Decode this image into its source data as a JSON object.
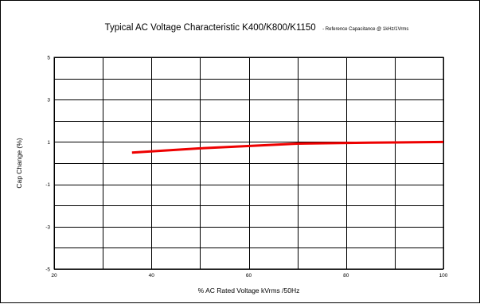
{
  "chart_data": {
    "type": "line",
    "title": "Typical AC Voltage Characteristic K400/K800/K1150",
    "subtitle": "- Reference Capacitance @ 1kHz/1Vrms",
    "xlabel": "% AC  Rated Voltage kVrms /50Hz",
    "ylabel": "Cap Change (%)",
    "xlim": [
      20,
      100
    ],
    "ylim": [
      -5,
      5
    ],
    "x_ticks": [
      20,
      40,
      60,
      80,
      100
    ],
    "y_ticks": [
      -5,
      -3,
      -1,
      1,
      3,
      5
    ],
    "grid": true,
    "series": [
      {
        "color": "#ee0000",
        "x": [
          36,
          50,
          70,
          85,
          100
        ],
        "y": [
          0.5,
          0.7,
          0.92,
          0.97,
          1.0
        ]
      }
    ]
  }
}
